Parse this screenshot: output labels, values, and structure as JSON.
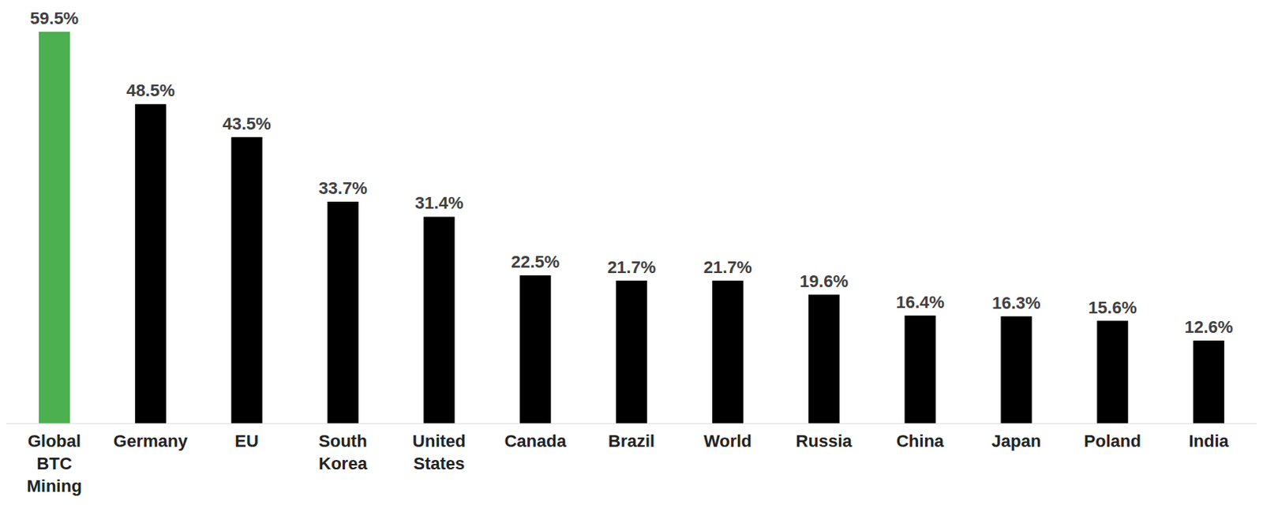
{
  "chart_data": {
    "type": "bar",
    "categories": [
      "Global BTC Mining",
      "Germany",
      "EU",
      "South Korea",
      "United States",
      "Canada",
      "Brazil",
      "World",
      "Russia",
      "China",
      "Japan",
      "Poland",
      "India"
    ],
    "values": [
      59.5,
      48.5,
      43.5,
      33.7,
      31.4,
      22.5,
      21.7,
      21.7,
      19.6,
      16.4,
      16.3,
      15.6,
      12.6
    ],
    "value_labels": [
      "59.5%",
      "48.5%",
      "43.5%",
      "33.7%",
      "31.4%",
      "22.5%",
      "21.7%",
      "21.7%",
      "19.6%",
      "16.4%",
      "16.3%",
      "15.6%",
      "12.6%"
    ],
    "colors": [
      "#4caf50",
      "#000000",
      "#000000",
      "#000000",
      "#000000",
      "#000000",
      "#000000",
      "#000000",
      "#000000",
      "#000000",
      "#000000",
      "#000000",
      "#000000"
    ],
    "data_labels": true,
    "tick_labels": "x",
    "grid": false
  }
}
